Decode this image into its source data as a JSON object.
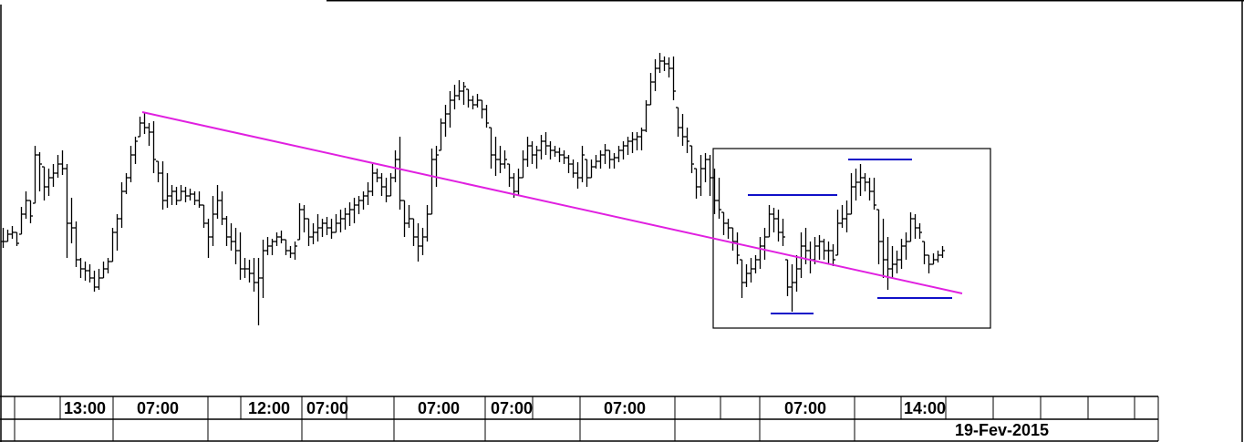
{
  "chart_data": {
    "type": "ohlc",
    "title": "",
    "xlabel": "",
    "ylabel": "",
    "bar_format": "[high, low, close]; open = previous close",
    "bars": [
      [
        185,
        163,
        170
      ],
      [
        183,
        170,
        178
      ],
      [
        187,
        173,
        180
      ],
      [
        180,
        165,
        168
      ],
      [
        208,
        178,
        200
      ],
      [
        225,
        195,
        215
      ],
      [
        215,
        190,
        198
      ],
      [
        275,
        212,
        265
      ],
      [
        268,
        225,
        255
      ],
      [
        252,
        215,
        230
      ],
      [
        250,
        220,
        240
      ],
      [
        255,
        230,
        245
      ],
      [
        265,
        240,
        255
      ],
      [
        270,
        243,
        250
      ],
      [
        255,
        152,
        190
      ],
      [
        218,
        168,
        185
      ],
      [
        192,
        142,
        150
      ],
      [
        152,
        130,
        140
      ],
      [
        148,
        127,
        138
      ],
      [
        145,
        125,
        130
      ],
      [
        138,
        115,
        120
      ],
      [
        140,
        117,
        130
      ],
      [
        148,
        130,
        140
      ],
      [
        152,
        135,
        148
      ],
      [
        185,
        148,
        180
      ],
      [
        200,
        160,
        195
      ],
      [
        235,
        185,
        225
      ],
      [
        245,
        222,
        240
      ],
      [
        275,
        235,
        265
      ],
      [
        285,
        255,
        280
      ],
      [
        307,
        285,
        300
      ],
      [
        312,
        288,
        295
      ],
      [
        300,
        275,
        290
      ],
      [
        302,
        245,
        260
      ],
      [
        258,
        235,
        245
      ],
      [
        258,
        205,
        215
      ],
      [
        245,
        207,
        220
      ],
      [
        232,
        210,
        225
      ],
      [
        230,
        210,
        215
      ],
      [
        232,
        215,
        225
      ],
      [
        230,
        213,
        220
      ],
      [
        228,
        215,
        222
      ],
      [
        225,
        210,
        215
      ],
      [
        225,
        207,
        210
      ],
      [
        210,
        185,
        190
      ],
      [
        195,
        152,
        175
      ],
      [
        220,
        165,
        200
      ],
      [
        232,
        195,
        215
      ],
      [
        225,
        188,
        195
      ],
      [
        198,
        165,
        175
      ],
      [
        190,
        160,
        170
      ],
      [
        185,
        145,
        160
      ],
      [
        180,
        128,
        140
      ],
      [
        152,
        130,
        140
      ],
      [
        150,
        125,
        135
      ],
      [
        152,
        115,
        125
      ],
      [
        152,
        78,
        130
      ],
      [
        172,
        108,
        160
      ],
      [
        175,
        155,
        165
      ],
      [
        173,
        155,
        170
      ],
      [
        180,
        165,
        175
      ],
      [
        182,
        168,
        172
      ],
      [
        172,
        155,
        160
      ],
      [
        165,
        152,
        157
      ],
      [
        170,
        150,
        165
      ],
      [
        212,
        172,
        205
      ],
      [
        210,
        180,
        195
      ],
      [
        195,
        165,
        175
      ],
      [
        190,
        167,
        180
      ],
      [
        200,
        170,
        185
      ],
      [
        195,
        175,
        190
      ],
      [
        197,
        177,
        185
      ],
      [
        195,
        173,
        180
      ],
      [
        200,
        180,
        190
      ],
      [
        205,
        180,
        195
      ],
      [
        207,
        183,
        200
      ],
      [
        213,
        187,
        205
      ],
      [
        218,
        190,
        210
      ],
      [
        220,
        200,
        215
      ],
      [
        225,
        205,
        220
      ],
      [
        235,
        210,
        225
      ],
      [
        255,
        220,
        245
      ],
      [
        250,
        235,
        240
      ],
      [
        245,
        220,
        230
      ],
      [
        240,
        213,
        220
      ],
      [
        245,
        220,
        240
      ],
      [
        270,
        235,
        260
      ],
      [
        285,
        205,
        215
      ],
      [
        215,
        175,
        190
      ],
      [
        210,
        185,
        195
      ],
      [
        195,
        165,
        175
      ],
      [
        190,
        148,
        165
      ],
      [
        185,
        155,
        175
      ],
      [
        210,
        170,
        200
      ],
      [
        272,
        200,
        260
      ],
      [
        275,
        230,
        265
      ],
      [
        305,
        270,
        300
      ],
      [
        320,
        285,
        310
      ],
      [
        335,
        295,
        325
      ],
      [
        342,
        315,
        330
      ],
      [
        347,
        325,
        335
      ],
      [
        345,
        320,
        340
      ],
      [
        337,
        317,
        325
      ],
      [
        330,
        315,
        320
      ],
      [
        332,
        317,
        325
      ],
      [
        325,
        305,
        315
      ],
      [
        320,
        295,
        300
      ],
      [
        295,
        250,
        265
      ],
      [
        285,
        242,
        260
      ],
      [
        275,
        245,
        255
      ],
      [
        270,
        250,
        260
      ],
      [
        255,
        230,
        240
      ],
      [
        245,
        218,
        225
      ],
      [
        250,
        220,
        240
      ],
      [
        270,
        240,
        260
      ],
      [
        285,
        252,
        275
      ],
      [
        280,
        255,
        265
      ],
      [
        275,
        250,
        270
      ],
      [
        287,
        260,
        280
      ],
      [
        290,
        265,
        275
      ],
      [
        280,
        260,
        270
      ],
      [
        275,
        263,
        268
      ],
      [
        273,
        257,
        265
      ],
      [
        270,
        255,
        262
      ],
      [
        265,
        245,
        255
      ],
      [
        260,
        240,
        245
      ],
      [
        257,
        228,
        240
      ],
      [
        275,
        235,
        265
      ],
      [
        260,
        230,
        240
      ],
      [
        260,
        240,
        252
      ],
      [
        265,
        250,
        258
      ],
      [
        270,
        250,
        265
      ],
      [
        277,
        255,
        270
      ],
      [
        270,
        250,
        260
      ],
      [
        267,
        250,
        262
      ],
      [
        275,
        257,
        270
      ],
      [
        280,
        260,
        275
      ],
      [
        285,
        265,
        280
      ],
      [
        290,
        267,
        282
      ],
      [
        290,
        270,
        285
      ],
      [
        295,
        270,
        292
      ],
      [
        325,
        290,
        320
      ],
      [
        355,
        320,
        345
      ],
      [
        370,
        335,
        360
      ],
      [
        377,
        355,
        368
      ],
      [
        373,
        357,
        365
      ],
      [
        372,
        350,
        360
      ],
      [
        373,
        325,
        335
      ],
      [
        317,
        285,
        295
      ],
      [
        310,
        275,
        285
      ],
      [
        295,
        267,
        280
      ],
      [
        275,
        245,
        255
      ],
      [
        250,
        217,
        230
      ],
      [
        265,
        220,
        250
      ],
      [
        267,
        235,
        260
      ],
      [
        265,
        220,
        240
      ],
      [
        250,
        200,
        215
      ],
      [
        240,
        195,
        205
      ],
      [
        202,
        177,
        190
      ],
      [
        195,
        173,
        185
      ],
      [
        185,
        160,
        170
      ],
      [
        180,
        145,
        155
      ],
      [
        150,
        108,
        125
      ],
      [
        145,
        120,
        135
      ],
      [
        152,
        125,
        140
      ],
      [
        155,
        135,
        150
      ],
      [
        175,
        140,
        165
      ],
      [
        185,
        150,
        175
      ],
      [
        210,
        175,
        200
      ],
      [
        207,
        180,
        195
      ],
      [
        205,
        170,
        180
      ],
      [
        195,
        165,
        175
      ],
      [
        150,
        110,
        120
      ],
      [
        145,
        93,
        125
      ],
      [
        155,
        115,
        140
      ],
      [
        180,
        130,
        165
      ],
      [
        185,
        145,
        160
      ],
      [
        170,
        135,
        150
      ],
      [
        175,
        145,
        165
      ],
      [
        177,
        150,
        170
      ],
      [
        173,
        150,
        160
      ],
      [
        170,
        145,
        160
      ],
      [
        167,
        143,
        150
      ],
      [
        205,
        155,
        190
      ],
      [
        210,
        185,
        195
      ],
      [
        215,
        180,
        200
      ],
      [
        245,
        200,
        230
      ],
      [
        250,
        215,
        235
      ],
      [
        255,
        220,
        240
      ],
      [
        245,
        225,
        235
      ],
      [
        240,
        215,
        225
      ],
      [
        240,
        205,
        210
      ],
      [
        205,
        145,
        170
      ],
      [
        195,
        130,
        150
      ],
      [
        175,
        117,
        140
      ],
      [
        165,
        130,
        145
      ],
      [
        160,
        135,
        150
      ],
      [
        173,
        140,
        165
      ],
      [
        180,
        150,
        170
      ],
      [
        202,
        170,
        195
      ],
      [
        200,
        173,
        185
      ],
      [
        190,
        173,
        180
      ],
      [
        170,
        145,
        155
      ],
      [
        155,
        135,
        145
      ],
      [
        157,
        145,
        150
      ],
      [
        160,
        147,
        155
      ],
      [
        165,
        152,
        160
      ]
    ],
    "trendline": {
      "color": "#e020e0",
      "points": [
        {
          "bar": 30.6,
          "value": 312
        },
        {
          "bar": 210.4,
          "value": 113
        }
      ]
    },
    "rectangle": {
      "color": "#000000",
      "from": {
        "bar": 155.8,
        "value": 272
      },
      "to": {
        "bar": 216.6,
        "value": 75
      }
    },
    "horizontal_lines": [
      {
        "color": "#1010c8",
        "from_bar": 163.4,
        "to_bar": 183,
        "value": 221
      },
      {
        "color": "#1010c8",
        "from_bar": 185.4,
        "to_bar": 199.4,
        "value": 260
      },
      {
        "color": "#1010c8",
        "from_bar": 168.4,
        "to_bar": 177.8,
        "value": 91
      },
      {
        "color": "#1010c8",
        "from_bar": 191.8,
        "to_bar": 208.2,
        "value": 108
      }
    ],
    "time_labels": [
      "13:00",
      "07:00",
      "12:00",
      "07:00",
      "07:00",
      "07:00",
      "07:00",
      "07:00",
      "14:00"
    ],
    "date_label": "19-Fev-2015",
    "bar_color": "#000000"
  }
}
